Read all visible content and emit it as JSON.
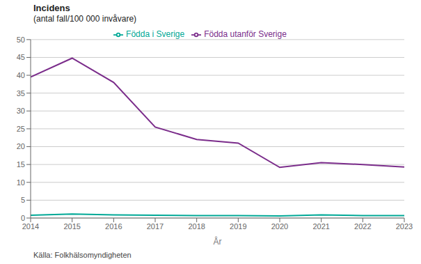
{
  "chart_data": {
    "type": "line",
    "title": "Incidens",
    "subtitle": "(antal fall/100 000 invåvare)",
    "x_label": "År",
    "source": "Källa: Folkhälsomyndigheten",
    "x": [
      2014,
      2015,
      2016,
      2017,
      2018,
      2019,
      2020,
      2021,
      2022,
      2023
    ],
    "xlim": [
      2014,
      2023
    ],
    "xticks": [
      2014,
      2015,
      2016,
      2017,
      2018,
      2019,
      2020,
      2021,
      2022,
      2023
    ],
    "ylim": [
      0,
      50
    ],
    "yticks": [
      0,
      5,
      10,
      15,
      20,
      25,
      30,
      35,
      40,
      45,
      50
    ],
    "grid": true,
    "legend": "top",
    "series": [
      {
        "name": "Födda utanför Sverige",
        "color": "#7b2d8b",
        "values": [
          39.5,
          44.8,
          38.0,
          25.5,
          22.0,
          21.0,
          14.2,
          15.5,
          15.0,
          14.3
        ]
      },
      {
        "name": "Födda i Sverige",
        "color": "#00a896",
        "values": [
          0.8,
          1.1,
          0.9,
          0.8,
          0.7,
          0.7,
          0.6,
          0.9,
          0.7,
          0.7
        ]
      }
    ]
  }
}
